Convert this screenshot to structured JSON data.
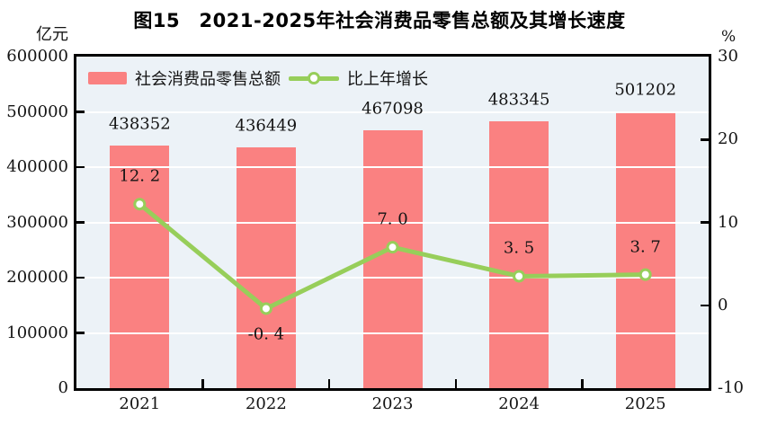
{
  "title": "图15　2021-2025年社会消费品零售总额及其增长速度",
  "left_axis_unit": "亿元",
  "right_axis_unit": "%",
  "legend": {
    "bar_label": "社会消费品零售总额",
    "line_label": "比上年增长"
  },
  "colors": {
    "bar": "#FA8181",
    "line": "#97CE5A",
    "marker_fill": "#FFFFFF",
    "plot_bg": "#ECF2F7",
    "gridline": "#FFFFFF",
    "axis": "#000000",
    "text": "#141414"
  },
  "chart_data": {
    "type": "bar",
    "subtype": "bar+line combo",
    "title": "图15　2021-2025年社会消费品零售总额及其增长速度",
    "categories": [
      "2021",
      "2022",
      "2023",
      "2024",
      "2025"
    ],
    "series": [
      {
        "name": "社会消费品零售总额",
        "type": "bar",
        "axis": "left",
        "values": [
          438352,
          436449,
          467098,
          483345,
          501202
        ],
        "labels": [
          "438352",
          "436449",
          "467098",
          "483345",
          "501202"
        ]
      },
      {
        "name": "比上年增长",
        "type": "line",
        "axis": "right",
        "values": [
          12.2,
          -0.4,
          7.0,
          3.5,
          3.7
        ],
        "labels": [
          "12. 2",
          "-0. 4",
          "7. 0",
          "3. 5",
          "3. 7"
        ],
        "label_position": [
          "above",
          "below",
          "above",
          "above",
          "above"
        ]
      }
    ],
    "left_axis": {
      "unit": "亿元",
      "min": 0,
      "max": 600000,
      "tick_step": 100000,
      "tick_labels": [
        "600000",
        "500000",
        "400000",
        "300000",
        "200000",
        "100000",
        "0"
      ]
    },
    "right_axis": {
      "unit": "%",
      "min": -10,
      "max": 30,
      "tick_step": 10,
      "tick_labels": [
        "30",
        "20",
        "10",
        "0",
        "-10"
      ]
    },
    "grid": true,
    "grid_over_bars": true,
    "legend_position": "top-left-inside"
  }
}
